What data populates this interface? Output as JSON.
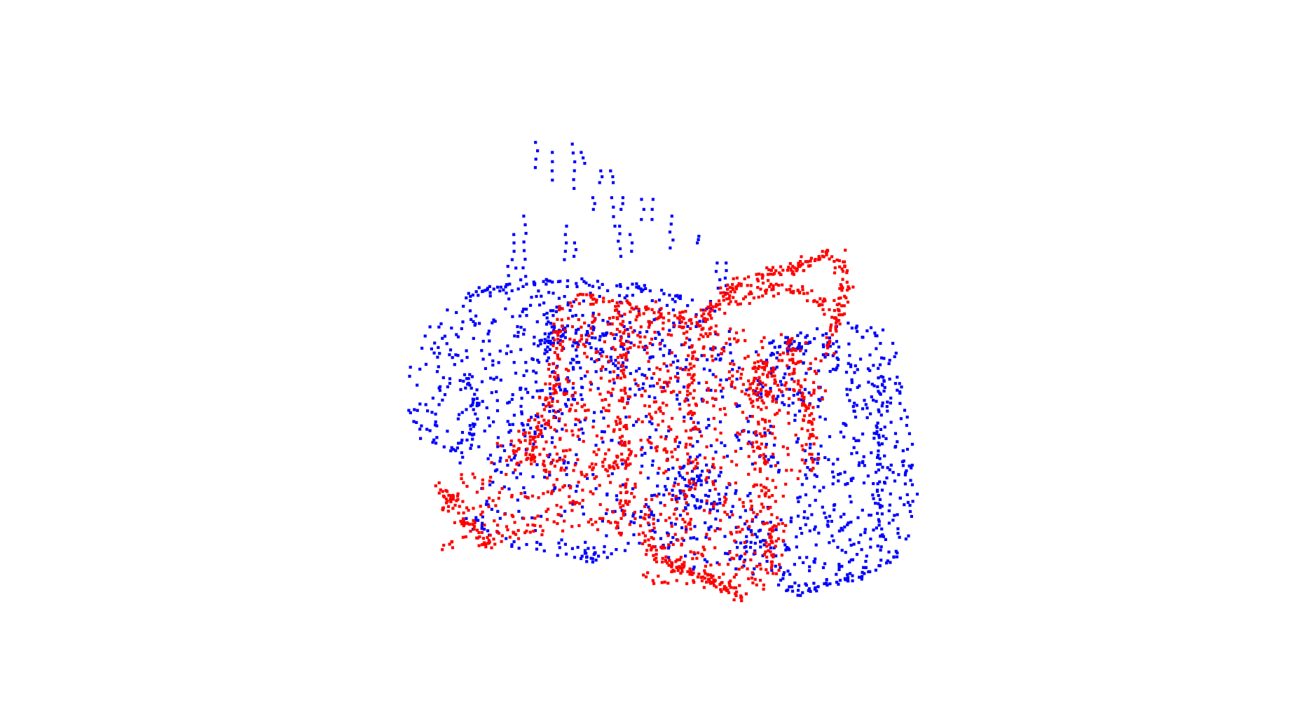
{
  "scene": {
    "background_color": "#ffffff",
    "description_visible_text": ""
  },
  "point_clouds": [
    {
      "name": "blue-point-cloud",
      "color": "#0000ff",
      "marker": "square"
    },
    {
      "name": "red-point-cloud",
      "color": "#ff0000",
      "marker": "square"
    }
  ]
}
